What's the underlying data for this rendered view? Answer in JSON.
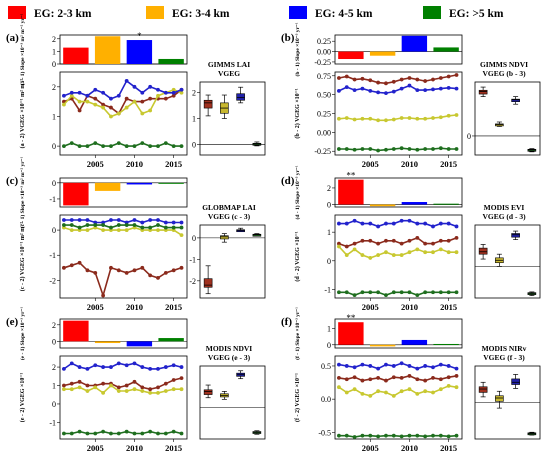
{
  "legend": {
    "items": [
      {
        "label": "EG: 2-3 km",
        "color": "#ff0000"
      },
      {
        "label": "EG: 3-4 km",
        "color": "#ffb000"
      },
      {
        "label": "EG: 4-5 km",
        "color": "#0000ff"
      },
      {
        "label": "EG: >5 km",
        "color": "#008000"
      }
    ]
  },
  "chart_data": [
    {
      "panel": "(a)",
      "type": "line",
      "title": "GIMMS LAI",
      "box_title": "VGEG",
      "bar_ylabel": "(a - 1) Slope ×10⁻³ m² m⁻² yr⁻¹",
      "line_ylabel": "(a - 2) VGEG ×10⁻¹ m² m⁻²",
      "bar_ylim": [
        0,
        2.3
      ],
      "bar_ticks": [
        0,
        1,
        2
      ],
      "bars": [
        1.3,
        2.2,
        1.9,
        0.4
      ],
      "bar_labels": [
        "",
        "",
        "*",
        ""
      ],
      "line_ylim": [
        -0.3,
        2.5
      ],
      "line_ticks": [
        0,
        1,
        2
      ],
      "x": [
        2001,
        2002,
        2003,
        2004,
        2005,
        2006,
        2007,
        2008,
        2009,
        2010,
        2011,
        2012,
        2013,
        2014,
        2015,
        2016
      ],
      "series": [
        {
          "values": [
            1.5,
            1.6,
            1.2,
            1.7,
            1.6,
            1.4,
            1.3,
            1.1,
            1.6,
            1.5,
            1.5,
            1.6,
            1.6,
            1.6,
            1.7,
            1.9
          ]
        },
        {
          "values": [
            1.4,
            1.7,
            1.5,
            1.5,
            1.4,
            1.3,
            1.0,
            1.1,
            1.3,
            1.5,
            1.1,
            1.2,
            1.7,
            1.8,
            1.9,
            1.8
          ]
        },
        {
          "values": [
            1.7,
            1.8,
            1.8,
            1.7,
            1.9,
            1.8,
            1.6,
            1.7,
            2.2,
            2.0,
            1.8,
            2.0,
            1.9,
            1.8,
            1.8,
            1.9
          ]
        },
        {
          "values": [
            0.0,
            0.1,
            0.0,
            0.0,
            0.1,
            0.0,
            0.0,
            0.1,
            0.0,
            0.0,
            0.1,
            0.0,
            0.0,
            0.1,
            0.0,
            0.0
          ]
        }
      ],
      "xticks": [
        2005,
        2010,
        2015
      ],
      "box_ylim": [
        -0.4,
        2.4
      ],
      "box_ticks": [
        0,
        1,
        2
      ],
      "boxes": [
        {
          "min": 1.1,
          "q1": 1.4,
          "median": 1.6,
          "q3": 1.7,
          "max": 1.9
        },
        {
          "min": 1.0,
          "q1": 1.2,
          "median": 1.4,
          "q3": 1.6,
          "max": 1.9
        },
        {
          "min": 1.6,
          "q1": 1.7,
          "median": 1.8,
          "q3": 1.95,
          "max": 2.2
        },
        {
          "min": -0.05,
          "q1": -0.01,
          "median": 0.02,
          "q3": 0.05,
          "max": 0.1
        }
      ]
    },
    {
      "panel": "(b)",
      "type": "line",
      "title": "GIMMS NDVI",
      "box_title": "VGEG (b - 3)",
      "bar_ylabel": "(b - 1) Slope ×10⁻³ yr⁻¹",
      "line_ylabel": "(b - 2) VGEG ×10⁻¹",
      "bar_ylim": [
        -0.3,
        0.4
      ],
      "bar_ticks": [
        -0.25,
        0.0,
        0.25
      ],
      "bar_ticklabels": [
        "-0.25",
        "0.00",
        "0.25"
      ],
      "bars": [
        -0.18,
        -0.1,
        0.38,
        0.1
      ],
      "bar_labels": [
        "",
        "",
        "",
        ""
      ],
      "line_ylim": [
        -0.3,
        0.8
      ],
      "line_ticks": [
        -0.25,
        0.0,
        0.25,
        0.5,
        0.75
      ],
      "line_ticklabels": [
        "-0.25",
        "0.00",
        "0.25",
        "0.50",
        "0.75"
      ],
      "x": [
        2001,
        2002,
        2003,
        2004,
        2005,
        2006,
        2007,
        2008,
        2009,
        2010,
        2011,
        2012,
        2013,
        2014,
        2015,
        2016
      ],
      "series": [
        {
          "values": [
            0.72,
            0.74,
            0.7,
            0.71,
            0.69,
            0.66,
            0.65,
            0.67,
            0.7,
            0.72,
            0.7,
            0.68,
            0.7,
            0.72,
            0.74,
            0.76
          ]
        },
        {
          "values": [
            0.18,
            0.19,
            0.17,
            0.18,
            0.18,
            0.16,
            0.16,
            0.17,
            0.19,
            0.19,
            0.18,
            0.18,
            0.19,
            0.2,
            0.22,
            0.23
          ]
        },
        {
          "values": [
            0.55,
            0.6,
            0.56,
            0.58,
            0.55,
            0.53,
            0.52,
            0.54,
            0.58,
            0.62,
            0.56,
            0.56,
            0.57,
            0.58,
            0.59,
            0.58
          ]
        },
        {
          "values": [
            -0.22,
            -0.22,
            -0.23,
            -0.22,
            -0.22,
            -0.24,
            -0.23,
            -0.22,
            -0.21,
            -0.22,
            -0.23,
            -0.22,
            -0.22,
            -0.21,
            -0.22,
            -0.22
          ]
        }
      ],
      "xticks": [
        2005,
        2010,
        2015
      ],
      "box_ylim": [
        -0.3,
        0.85
      ],
      "box_ticks": [
        0
      ],
      "boxes": [
        {
          "min": 0.62,
          "q1": 0.66,
          "median": 0.7,
          "q3": 0.72,
          "max": 0.77
        },
        {
          "min": 0.15,
          "q1": 0.17,
          "median": 0.18,
          "q3": 0.19,
          "max": 0.22
        },
        {
          "min": 0.5,
          "q1": 0.54,
          "median": 0.57,
          "q3": 0.58,
          "max": 0.62
        },
        {
          "min": -0.25,
          "q1": -0.23,
          "median": -0.22,
          "q3": -0.21,
          "max": -0.2
        }
      ]
    },
    {
      "panel": "(c)",
      "type": "line",
      "title": "GLOBMAP LAI",
      "box_title": "VGEG (c - 3)",
      "bar_ylabel": "(c - 1) Slope ×10⁻³ m² m⁻² yr⁻¹",
      "line_ylabel": "(c - 2) VGEG ×10⁻¹ m² m⁻²",
      "bar_ylim": [
        -1.5,
        0.3
      ],
      "bar_ticks": [
        -1,
        0
      ],
      "bars": [
        -1.4,
        -0.5,
        -0.1,
        0.0
      ],
      "bar_labels": [
        "",
        "",
        "",
        ""
      ],
      "line_ylim": [
        -2.7,
        0.6
      ],
      "line_ticks": [
        -2,
        -1,
        0
      ],
      "x": [
        2001,
        2002,
        2003,
        2004,
        2005,
        2006,
        2007,
        2008,
        2009,
        2010,
        2011,
        2012,
        2013,
        2014,
        2015,
        2016
      ],
      "series": [
        {
          "values": [
            -1.5,
            -1.4,
            -1.3,
            -1.6,
            -1.7,
            -2.6,
            -1.5,
            -1.6,
            -1.7,
            -1.6,
            -1.5,
            -1.8,
            -1.9,
            -1.7,
            -1.6,
            -1.5
          ]
        },
        {
          "values": [
            0.1,
            0.0,
            0.0,
            0.0,
            0.1,
            0.0,
            0.0,
            0.0,
            0.0,
            0.1,
            0.0,
            0.0,
            0.0,
            0.0,
            0.0,
            -0.2
          ]
        },
        {
          "values": [
            0.4,
            0.4,
            0.4,
            0.4,
            0.3,
            0.3,
            0.4,
            0.4,
            0.3,
            0.4,
            0.3,
            0.4,
            0.4,
            0.3,
            0.3,
            0.3
          ]
        },
        {
          "values": [
            0.2,
            0.2,
            0.1,
            0.2,
            0.2,
            0.2,
            0.1,
            0.2,
            0.2,
            0.2,
            0.1,
            0.1,
            0.2,
            0.1,
            0.1,
            0.1
          ]
        }
      ],
      "xticks": [
        2005,
        2010,
        2015
      ],
      "box_ylim": [
        -2.8,
        0.6
      ],
      "box_ticks": [
        -2,
        -1,
        0
      ],
      "boxes": [
        {
          "min": -2.6,
          "q1": -2.3,
          "median": -2.2,
          "q3": -1.9,
          "max": -1.3
        },
        {
          "min": -0.2,
          "q1": -0.05,
          "median": 0.05,
          "q3": 0.1,
          "max": 0.2
        },
        {
          "min": 0.3,
          "q1": 0.32,
          "median": 0.35,
          "q3": 0.38,
          "max": 0.45
        },
        {
          "min": 0.1,
          "q1": 0.12,
          "median": 0.15,
          "q3": 0.17,
          "max": 0.2
        }
      ]
    },
    {
      "panel": "(d)",
      "type": "line",
      "title": "MODIS EVI",
      "box_title": "VGEG (d - 3)",
      "bar_ylabel": "(d - 1) Slope ×10⁻³ yr⁻¹",
      "line_ylabel": "(d - 2) VGEG ×10⁻¹",
      "bar_ylim": [
        -0.3,
        3.2
      ],
      "bar_ticks": [
        0,
        2
      ],
      "bars": [
        3.0,
        -0.2,
        0.3,
        0.1
      ],
      "bar_labels": [
        "**",
        "",
        "",
        ""
      ],
      "line_ylim": [
        -1.3,
        1.6
      ],
      "line_ticks": [
        -1,
        0,
        1
      ],
      "x": [
        2001,
        2002,
        2003,
        2004,
        2005,
        2006,
        2007,
        2008,
        2009,
        2010,
        2011,
        2012,
        2013,
        2014,
        2015,
        2016
      ],
      "series": [
        {
          "values": [
            0.6,
            0.5,
            0.6,
            0.7,
            0.7,
            0.6,
            0.7,
            0.7,
            0.6,
            0.7,
            0.8,
            0.6,
            0.6,
            0.7,
            0.7,
            0.8
          ]
        },
        {
          "values": [
            0.5,
            0.2,
            0.4,
            0.2,
            0.1,
            0.2,
            0.3,
            0.2,
            0.2,
            0.3,
            0.4,
            0.3,
            0.3,
            0.4,
            0.3,
            0.3
          ]
        },
        {
          "values": [
            1.3,
            1.3,
            1.4,
            1.3,
            1.3,
            1.2,
            1.3,
            1.3,
            1.4,
            1.4,
            1.3,
            1.3,
            1.2,
            1.3,
            1.3,
            1.2
          ]
        },
        {
          "values": [
            -1.1,
            -1.1,
            -1.2,
            -1.1,
            -1.1,
            -1.1,
            -1.2,
            -1.1,
            -1.1,
            -1.1,
            -1.2,
            -1.1,
            -1.1,
            -1.1,
            -1.1,
            -1.1
          ]
        }
      ],
      "xticks": [
        2005,
        2010,
        2015
      ],
      "box_ylim": [
        -1.3,
        1.7
      ],
      "box_ticks": [],
      "boxes": [
        {
          "min": 0.3,
          "q1": 0.5,
          "median": 0.6,
          "q3": 0.75,
          "max": 0.9
        },
        {
          "min": 0.0,
          "q1": 0.15,
          "median": 0.25,
          "q3": 0.35,
          "max": 0.5
        },
        {
          "min": 1.1,
          "q1": 1.2,
          "median": 1.3,
          "q3": 1.35,
          "max": 1.45
        },
        {
          "min": -1.2,
          "q1": -1.15,
          "median": -1.1,
          "q3": -1.08,
          "max": -1.05
        }
      ]
    },
    {
      "panel": "(e)",
      "type": "line",
      "title": "MODIS NDVI",
      "box_title": "VGEG (e - 3)",
      "bar_ylabel": "(e - 1) Slope ×10⁻³ yr⁻¹",
      "line_ylabel": "(e - 2) VGEG ×10⁻¹",
      "bar_ylim": [
        -0.8,
        2.7
      ],
      "bar_ticks": [
        0,
        2
      ],
      "bars": [
        2.5,
        -0.2,
        -0.6,
        0.4
      ],
      "bar_labels": [
        "",
        "",
        "",
        ""
      ],
      "line_ylim": [
        -1.9,
        2.6
      ],
      "line_ticks": [
        -1,
        0,
        1,
        2
      ],
      "x": [
        2001,
        2002,
        2003,
        2004,
        2005,
        2006,
        2007,
        2008,
        2009,
        2010,
        2011,
        2012,
        2013,
        2014,
        2015,
        2016
      ],
      "series": [
        {
          "values": [
            1.0,
            1.1,
            1.2,
            1.0,
            1.0,
            1.1,
            1.1,
            0.9,
            1.0,
            1.2,
            0.9,
            0.8,
            0.9,
            1.1,
            1.3,
            1.4
          ]
        },
        {
          "values": [
            0.8,
            0.8,
            0.9,
            0.7,
            0.9,
            0.6,
            1.0,
            0.7,
            0.7,
            0.8,
            0.7,
            0.6,
            0.6,
            0.7,
            0.8,
            0.8
          ]
        },
        {
          "values": [
            1.9,
            2.2,
            2.0,
            1.9,
            2.1,
            2.0,
            2.0,
            2.2,
            2.1,
            2.2,
            2.0,
            1.9,
            1.9,
            2.0,
            2.1,
            2.0
          ]
        },
        {
          "values": [
            -1.6,
            -1.6,
            -1.5,
            -1.6,
            -1.6,
            -1.5,
            -1.6,
            -1.6,
            -1.5,
            -1.6,
            -1.6,
            -1.5,
            -1.6,
            -1.6,
            -1.5,
            -1.6
          ]
        }
      ],
      "xticks": [
        2005,
        2010,
        2015
      ],
      "box_ylim": [
        -2.0,
        2.6
      ],
      "box_ticks": [],
      "boxes": [
        {
          "min": 0.6,
          "q1": 0.8,
          "median": 1.0,
          "q3": 1.1,
          "max": 1.4
        },
        {
          "min": 0.5,
          "q1": 0.65,
          "median": 0.75,
          "q3": 0.85,
          "max": 1.0
        },
        {
          "min": 1.8,
          "q1": 1.95,
          "median": 2.05,
          "q3": 2.15,
          "max": 2.3
        },
        {
          "min": -1.7,
          "q1": -1.62,
          "median": -1.57,
          "q3": -1.53,
          "max": -1.48
        }
      ]
    },
    {
      "panel": "(f)",
      "type": "line",
      "title": "MODIS NIRv",
      "box_title": "VGEG (f - 3)",
      "bar_ylabel": "(f - 1) Slope ×10⁻³ yr⁻¹",
      "line_ylabel": "(f - 2) VGEG ×10⁻¹",
      "bar_ylim": [
        -0.2,
        1.6
      ],
      "bar_ticks": [
        0,
        1
      ],
      "bars": [
        1.4,
        -0.1,
        0.3,
        0.05
      ],
      "bar_labels": [
        "**",
        "",
        "",
        ""
      ],
      "line_ylim": [
        -0.6,
        0.65
      ],
      "line_ticks": [
        -0.5,
        0.0,
        0.5
      ],
      "line_ticklabels": [
        "-0.5",
        "0.0",
        "0.5"
      ],
      "x": [
        2001,
        2002,
        2003,
        2004,
        2005,
        2006,
        2007,
        2008,
        2009,
        2010,
        2011,
        2012,
        2013,
        2014,
        2015,
        2016
      ],
      "series": [
        {
          "values": [
            0.32,
            0.3,
            0.33,
            0.28,
            0.3,
            0.32,
            0.28,
            0.33,
            0.32,
            0.35,
            0.3,
            0.28,
            0.32,
            0.3,
            0.33,
            0.35
          ]
        },
        {
          "values": [
            0.18,
            0.1,
            0.15,
            0.08,
            0.05,
            0.12,
            0.1,
            0.05,
            0.12,
            0.15,
            0.08,
            0.12,
            0.1,
            0.15,
            0.2,
            0.18
          ]
        },
        {
          "values": [
            0.52,
            0.5,
            0.48,
            0.52,
            0.5,
            0.46,
            0.52,
            0.5,
            0.54,
            0.5,
            0.46,
            0.5,
            0.48,
            0.52,
            0.5,
            0.46
          ]
        },
        {
          "values": [
            -0.55,
            -0.55,
            -0.57,
            -0.55,
            -0.55,
            -0.56,
            -0.55,
            -0.55,
            -0.56,
            -0.55,
            -0.55,
            -0.56,
            -0.55,
            -0.55,
            -0.56,
            -0.55
          ]
        }
      ],
      "xticks": [
        2005,
        2010,
        2015
      ],
      "box_ylim": [
        -0.65,
        0.65
      ],
      "box_ticks": [],
      "boxes": [
        {
          "min": 0.1,
          "q1": 0.18,
          "median": 0.24,
          "q3": 0.28,
          "max": 0.36
        },
        {
          "min": -0.1,
          "q1": 0.02,
          "median": 0.08,
          "q3": 0.12,
          "max": 0.2
        },
        {
          "min": 0.25,
          "q1": 0.32,
          "median": 0.36,
          "q3": 0.42,
          "max": 0.5
        },
        {
          "min": -0.58,
          "q1": -0.56,
          "median": -0.55,
          "q3": -0.54,
          "max": -0.53
        }
      ]
    }
  ],
  "series_colors": [
    "#8b2a1c",
    "#c8c830",
    "#2222cc",
    "#1e6e1e"
  ],
  "bar_colors": [
    "#ff0000",
    "#ffb000",
    "#0000ff",
    "#008000"
  ],
  "box_colors": [
    "#a0311f",
    "#c8b830",
    "#2222aa",
    "#1e5a1e"
  ]
}
